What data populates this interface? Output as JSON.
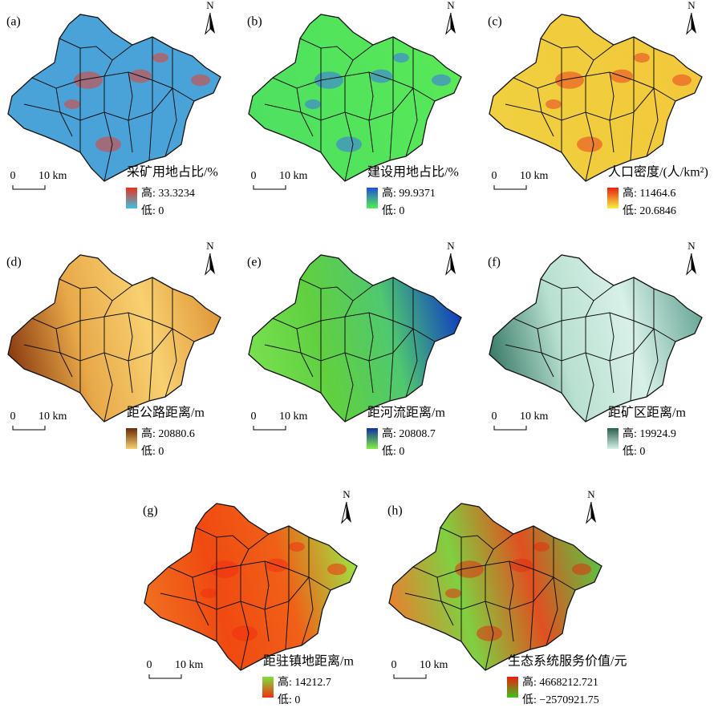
{
  "panels": [
    {
      "label": "(a)",
      "title": "采矿用地占比/%",
      "legend_high": "高: 33.3234",
      "legend_low": "低: 0",
      "scale_start": "0",
      "scale_end": "10 km",
      "north": "N"
    },
    {
      "label": "(b)",
      "title": "建设用地占比/%",
      "legend_high": "高: 99.9371",
      "legend_low": "低: 0",
      "scale_start": "0",
      "scale_end": "10 km",
      "north": "N"
    },
    {
      "label": "(c)",
      "title": "人口密度/(人/km²)",
      "legend_high": "高: 11464.6",
      "legend_low": "低: 20.6846",
      "scale_start": "0",
      "scale_end": "10 km",
      "north": "N"
    },
    {
      "label": "(d)",
      "title": "距公路距离/m",
      "legend_high": "高: 20880.6",
      "legend_low": "低: 0",
      "scale_start": "0",
      "scale_end": "10 km",
      "north": "N"
    },
    {
      "label": "(e)",
      "title": "距河流距离/m",
      "legend_high": "高: 20808.7",
      "legend_low": "低: 0",
      "scale_start": "0",
      "scale_end": "10 km",
      "north": "N"
    },
    {
      "label": "(f)",
      "title": "距矿区距离/m",
      "legend_high": "高: 19924.9",
      "legend_low": "低: 0",
      "scale_start": "0",
      "scale_end": "10 km",
      "north": "N"
    },
    {
      "label": "(g)",
      "title": "距驻镇地距离/m",
      "legend_high": "高: 14212.7",
      "legend_low": "低: 0",
      "scale_start": "0",
      "scale_end": "10 km",
      "north": "N"
    },
    {
      "label": "(h)",
      "title": "生态系统服务价值/元",
      "legend_high": "高: 4668212.721",
      "legend_low": "低: −2570921.75",
      "scale_start": "0",
      "scale_end": "10 km",
      "north": "N"
    }
  ]
}
